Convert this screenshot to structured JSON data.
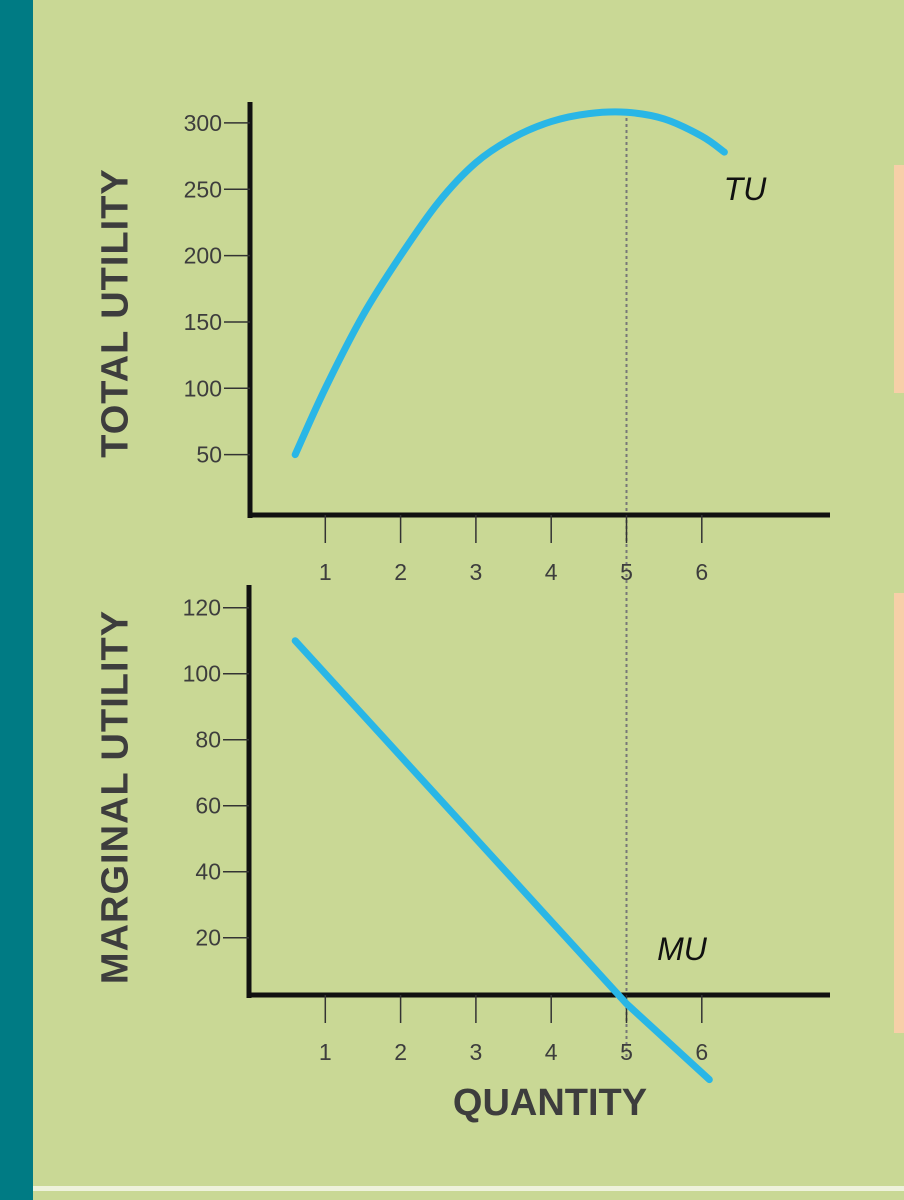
{
  "colors": {
    "background": "#c9d895",
    "side_bar": "#007b84",
    "curve": "#29b6e6",
    "axis": "#111111",
    "label_text": "#3d3d3d",
    "accent_strip": "#f7cfa8"
  },
  "chart_data": [
    {
      "type": "line",
      "xlabel": "",
      "ylabel": "TOTAL UTILITY",
      "x_ticks": [
        1,
        2,
        3,
        4,
        5,
        6
      ],
      "y_ticks": [
        50,
        100,
        150,
        200,
        250,
        300
      ],
      "xlim": [
        0,
        7.8
      ],
      "ylim": [
        0,
        310
      ],
      "grid": false,
      "series": [
        {
          "name": "TU",
          "x": [
            0.6,
            1,
            1.5,
            2,
            2.5,
            3,
            3.5,
            4,
            4.5,
            5,
            5.5,
            6,
            6.3
          ],
          "y": [
            50,
            100,
            155,
            200,
            240,
            270,
            289,
            301,
            307,
            308,
            303,
            290,
            278
          ]
        }
      ],
      "reference_x": 5
    },
    {
      "type": "line",
      "xlabel": "QUANTITY",
      "ylabel": "MARGINAL UTILITY",
      "x_ticks": [
        1,
        2,
        3,
        4,
        5,
        6
      ],
      "y_ticks": [
        20,
        40,
        60,
        80,
        100,
        120
      ],
      "xlim": [
        0,
        7.8
      ],
      "ylim": [
        0,
        125
      ],
      "grid": false,
      "series": [
        {
          "name": "MU",
          "x": [
            0.6,
            5,
            6.1
          ],
          "y": [
            110,
            0,
            -23
          ]
        }
      ],
      "reference_x": 5
    }
  ]
}
